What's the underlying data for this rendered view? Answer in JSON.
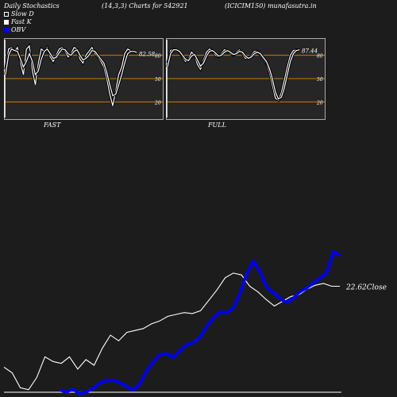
{
  "header": {
    "left": "Daily Stochastics",
    "params": "(14,3,3) Charts for 542921",
    "symbol": "(ICICIM150) munafasutra.in"
  },
  "legend": [
    {
      "label": "Slow  D"
    },
    {
      "label": "Fast K"
    },
    {
      "label": "OBV"
    }
  ],
  "colors": {
    "background": "#1c1c1c",
    "panel": "#262626",
    "level_line": "#cc7a00",
    "obv": "#0000ff",
    "close": "#ffffff"
  },
  "chart_data": [
    {
      "type": "line",
      "title": "FAST",
      "ylim": [
        0,
        100
      ],
      "levels": [
        20,
        50,
        80
      ],
      "level_labels": [
        "20",
        "50",
        "80"
      ],
      "last_value_label": "82.58",
      "series": [
        {
          "values": [
            62,
            88,
            90,
            85,
            90,
            70,
            55,
            88,
            92,
            60,
            42,
            70,
            88,
            85,
            90,
            78,
            72,
            80,
            88,
            90,
            85,
            78,
            82,
            90,
            88,
            75,
            70,
            80,
            85,
            90,
            82,
            78,
            72,
            65,
            50,
            30,
            15,
            35,
            55,
            65,
            82,
            88,
            86,
            84,
            83
          ]
        },
        {
          "values": [
            55,
            80,
            88,
            86,
            85,
            75,
            65,
            72,
            82,
            72,
            55,
            60,
            75,
            85,
            88,
            82,
            76,
            77,
            83,
            88,
            87,
            82,
            80,
            85,
            87,
            80,
            74,
            76,
            80,
            86,
            85,
            80,
            75,
            70,
            58,
            42,
            28,
            30,
            42,
            55,
            70,
            82,
            85,
            85,
            84
          ]
        }
      ]
    },
    {
      "type": "line",
      "title": "FULL",
      "ylim": [
        0,
        100
      ],
      "levels": [
        20,
        50,
        80
      ],
      "level_labels": [
        "20",
        "50",
        "80"
      ],
      "last_value_label": "87.44",
      "series": [
        {
          "values": [
            70,
            86,
            88,
            87,
            84,
            78,
            72,
            75,
            84,
            80,
            68,
            62,
            74,
            84,
            88,
            86,
            80,
            78,
            82,
            87,
            86,
            82,
            80,
            84,
            87,
            82,
            76,
            76,
            80,
            85,
            85,
            80,
            75,
            70,
            58,
            42,
            25,
            22,
            32,
            48,
            65,
            80,
            86,
            87,
            87
          ]
        },
        {
          "values": [
            65,
            82,
            87,
            87,
            85,
            80,
            75,
            73,
            79,
            81,
            74,
            66,
            70,
            79,
            85,
            86,
            83,
            79,
            80,
            84,
            86,
            84,
            81,
            82,
            85,
            84,
            79,
            76,
            78,
            82,
            84,
            82,
            77,
            72,
            63,
            50,
            33,
            24,
            26,
            38,
            55,
            72,
            82,
            86,
            87
          ]
        }
      ]
    },
    {
      "type": "line",
      "title": "",
      "close_label": "22.62",
      "close_word": "Close",
      "series": [
        {
          "values": [
            14.0,
            13.4,
            11.8,
            11.6,
            12.9,
            15.1,
            14.6,
            14.4,
            15.1,
            13.8,
            14.8,
            14.2,
            16.0,
            17.4,
            16.8,
            17.7,
            17.9,
            18.1,
            18.6,
            18.9,
            19.4,
            19.6,
            19.8,
            19.7,
            20.0,
            21.1,
            22.2,
            23.5,
            24.0,
            23.8,
            22.6,
            22.0,
            21.2,
            20.5,
            21.0,
            21.5,
            21.7,
            22.3,
            22.7,
            22.9,
            22.6,
            22.6
          ]
        },
        {
          "values": [
            10.2,
            10.0,
            10.3,
            9.8,
            10.0,
            10.4,
            11.0,
            11.2,
            11.3,
            11.0,
            10.6,
            10.2,
            10.9,
            12.3,
            13.3,
            14.1,
            14.2,
            13.8,
            14.5,
            15.2,
            15.4,
            16.0,
            17.2,
            18.1,
            18.8,
            18.7,
            19.2,
            20.8,
            22.9,
            24.4,
            23.2,
            21.5,
            20.9,
            20.3,
            19.8,
            20.3,
            21.0,
            21.4,
            22.0,
            22.5,
            23.1,
            25.4,
            25.0
          ]
        }
      ]
    }
  ]
}
